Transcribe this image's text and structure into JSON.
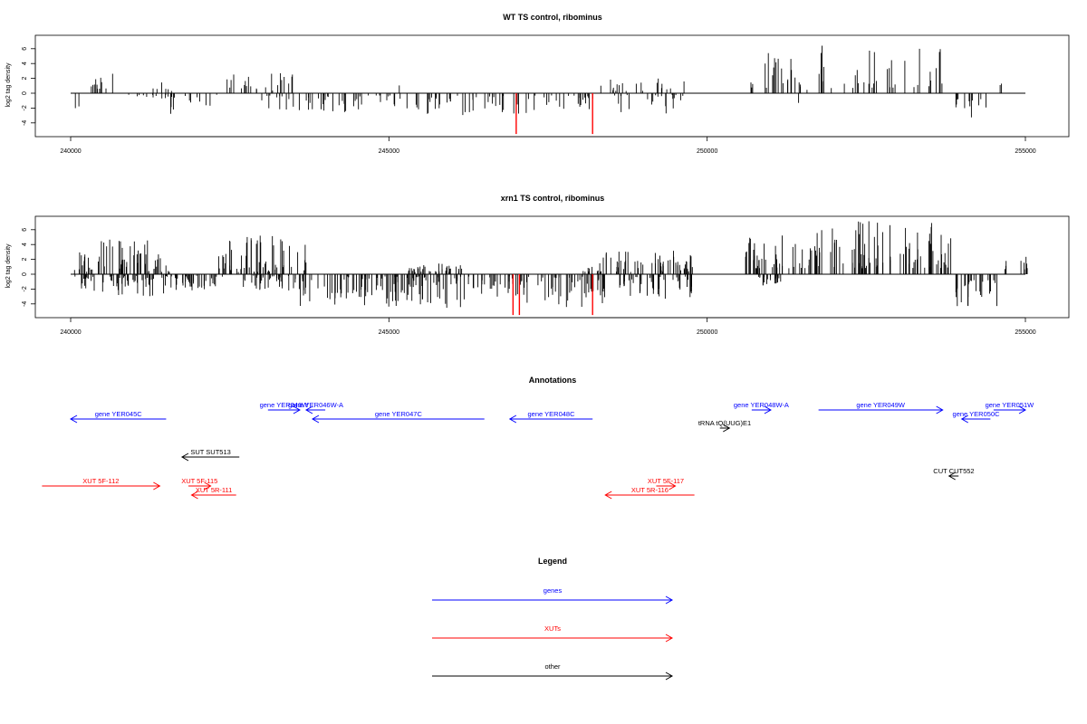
{
  "colors": {
    "genes": "#0000ff",
    "xuts": "#ff0000",
    "other": "#000000",
    "highlight": "#ff0000",
    "axis": "#000000"
  },
  "chart_data": [
    {
      "type": "bar",
      "title": "WT TS control, ribominus",
      "xlabel": "",
      "ylabel": "log2 tag density",
      "xlim": [
        240000,
        255000
      ],
      "ylim": [
        -6,
        8
      ],
      "xticks": [
        "240000",
        "245000",
        "250000",
        "255000"
      ],
      "yticks": [
        "-4",
        "-2",
        "0",
        "2",
        "4",
        "6"
      ],
      "highlight_positions": [
        247000,
        248200
      ],
      "highlight_values": [
        -5.5,
        -5.5
      ],
      "regions": [
        {
          "start": 240050,
          "end": 240150,
          "sign": -1,
          "min": 0.8,
          "max": 2.4
        },
        {
          "start": 240250,
          "end": 240700,
          "sign": 1,
          "min": 0.3,
          "max": 2.8
        },
        {
          "start": 240900,
          "end": 241800,
          "sign": -1,
          "min": 0.2,
          "max": 2.8
        },
        {
          "start": 241250,
          "end": 241600,
          "sign": 1,
          "min": 0.3,
          "max": 1.6
        },
        {
          "start": 241800,
          "end": 242300,
          "sign": -1,
          "min": 0.2,
          "max": 1.8
        },
        {
          "start": 242400,
          "end": 243500,
          "sign": 1,
          "min": 0.3,
          "max": 2.7
        },
        {
          "start": 243000,
          "end": 243600,
          "sign": -1,
          "min": 0.2,
          "max": 2.3
        },
        {
          "start": 243700,
          "end": 245500,
          "sign": -1,
          "min": 0.3,
          "max": 2.6
        },
        {
          "start": 245100,
          "end": 245200,
          "sign": 1,
          "min": 1.0,
          "max": 2.0
        },
        {
          "start": 245600,
          "end": 247600,
          "sign": -1,
          "min": 0.3,
          "max": 3.0
        },
        {
          "start": 247600,
          "end": 248250,
          "sign": -1,
          "min": 0.3,
          "max": 2.4
        },
        {
          "start": 248300,
          "end": 249000,
          "sign": 1,
          "min": 0.3,
          "max": 2.0
        },
        {
          "start": 248500,
          "end": 249700,
          "sign": -1,
          "min": 0.2,
          "max": 2.8
        },
        {
          "start": 249200,
          "end": 249650,
          "sign": 1,
          "min": 0.3,
          "max": 2.0
        },
        {
          "start": 250650,
          "end": 251400,
          "sign": 1,
          "min": 0.6,
          "max": 5.5
        },
        {
          "start": 251400,
          "end": 251600,
          "sign": 1,
          "min": 0.3,
          "max": 1.5
        },
        {
          "start": 251400,
          "end": 251500,
          "sign": -1,
          "min": 0.5,
          "max": 1.5
        },
        {
          "start": 251750,
          "end": 253700,
          "sign": 1,
          "min": 0.6,
          "max": 6.5
        },
        {
          "start": 253850,
          "end": 254450,
          "sign": -1,
          "min": 0.8,
          "max": 3.5
        },
        {
          "start": 254600,
          "end": 254650,
          "sign": 1,
          "min": 1.0,
          "max": 1.6
        }
      ],
      "density": 3
    },
    {
      "type": "bar",
      "title": "xrn1 TS control, ribominus",
      "xlabel": "",
      "ylabel": "log2 tag density",
      "xlim": [
        240000,
        255000
      ],
      "ylim": [
        -6,
        8
      ],
      "xticks": [
        "240000",
        "245000",
        "250000",
        "255000"
      ],
      "yticks": [
        "-4",
        "-2",
        "0",
        "2",
        "4",
        "6"
      ],
      "highlight_positions": [
        246950,
        247050,
        248200
      ],
      "highlight_values": [
        -5.5,
        -5.5,
        -5.5
      ],
      "regions": [
        {
          "start": 240050,
          "end": 240350,
          "sign": 1,
          "min": 0.3,
          "max": 3.0
        },
        {
          "start": 240050,
          "end": 240400,
          "sign": -1,
          "min": 0.3,
          "max": 2.3
        },
        {
          "start": 240400,
          "end": 241600,
          "sign": 1,
          "min": 0.3,
          "max": 5.0
        },
        {
          "start": 240500,
          "end": 241600,
          "sign": -1,
          "min": 0.2,
          "max": 3.0
        },
        {
          "start": 241600,
          "end": 242400,
          "sign": -1,
          "min": 0.2,
          "max": 2.2
        },
        {
          "start": 242300,
          "end": 243700,
          "sign": 1,
          "min": 0.3,
          "max": 5.2
        },
        {
          "start": 242700,
          "end": 243600,
          "sign": -1,
          "min": 0.2,
          "max": 2.2
        },
        {
          "start": 243600,
          "end": 248400,
          "sign": -1,
          "min": 0.3,
          "max": 4.6
        },
        {
          "start": 245300,
          "end": 246200,
          "sign": 1,
          "min": 0.3,
          "max": 1.5
        },
        {
          "start": 248000,
          "end": 248300,
          "sign": 1,
          "min": 0.3,
          "max": 1.2
        },
        {
          "start": 248300,
          "end": 249800,
          "sign": 1,
          "min": 0.3,
          "max": 3.3
        },
        {
          "start": 248600,
          "end": 249800,
          "sign": -1,
          "min": 0.3,
          "max": 3.6
        },
        {
          "start": 250600,
          "end": 251800,
          "sign": 1,
          "min": 0.8,
          "max": 5.3
        },
        {
          "start": 250800,
          "end": 251200,
          "sign": -1,
          "min": 0.3,
          "max": 1.5
        },
        {
          "start": 251700,
          "end": 253900,
          "sign": 1,
          "min": 0.8,
          "max": 7.3
        },
        {
          "start": 253900,
          "end": 254600,
          "sign": -1,
          "min": 0.8,
          "max": 4.6
        },
        {
          "start": 254650,
          "end": 254700,
          "sign": 1,
          "min": 0.5,
          "max": 2.0
        },
        {
          "start": 254900,
          "end": 255050,
          "sign": 1,
          "min": 0.5,
          "max": 3.0
        }
      ],
      "density": 6
    }
  ],
  "annotations": {
    "title": "Annotations",
    "items": [
      {
        "label": "gene YER045C",
        "kind": "genes",
        "start": 240000,
        "end": 241500,
        "dir": "left",
        "row": 0
      },
      {
        "label": "gene YER046W",
        "kind": "genes",
        "start": 243100,
        "end": 243600,
        "dir": "right",
        "row": -1
      },
      {
        "label": "gene YER046W-A",
        "kind": "genes",
        "start": 243700,
        "end": 244000,
        "dir": "left",
        "row": -1
      },
      {
        "label": "gene YER047C",
        "kind": "genes",
        "start": 243800,
        "end": 246500,
        "dir": "left",
        "row": 0
      },
      {
        "label": "gene YER048C",
        "kind": "genes",
        "start": 246900,
        "end": 248200,
        "dir": "left",
        "row": 0
      },
      {
        "label": "gene YER048W-A",
        "kind": "genes",
        "start": 250700,
        "end": 251000,
        "dir": "right",
        "row": -1
      },
      {
        "label": "gene YER049W",
        "kind": "genes",
        "start": 251750,
        "end": 253700,
        "dir": "right",
        "row": -1
      },
      {
        "label": "gene YER050C",
        "kind": "genes",
        "start": 254000,
        "end": 254450,
        "dir": "left",
        "row": 0
      },
      {
        "label": "gene YER051W",
        "kind": "genes",
        "start": 254500,
        "end": 255000,
        "dir": "right",
        "row": -1
      },
      {
        "label": "tRNA tQ(UUG)E1",
        "kind": "other",
        "start": 250200,
        "end": 250350,
        "dir": "right",
        "row": 1
      },
      {
        "label": "SUT SUT513",
        "kind": "other",
        "start": 241750,
        "end": 242650,
        "dir": "left",
        "row": 2
      },
      {
        "label": "CUT CUT552",
        "kind": "other",
        "start": 253800,
        "end": 253950,
        "dir": "left",
        "row": 4
      },
      {
        "label": "XUT 5F-112",
        "kind": "xuts",
        "start": 239550,
        "end": 241400,
        "dir": "right",
        "row": 5
      },
      {
        "label": "XUT 5F-115",
        "kind": "xuts",
        "start": 241850,
        "end": 242200,
        "dir": "right",
        "row": 5
      },
      {
        "label": "XUT 5R-111",
        "kind": "xuts",
        "start": 241900,
        "end": 242600,
        "dir": "left",
        "row": 6
      },
      {
        "label": "XUT 5F-117",
        "kind": "xuts",
        "start": 249200,
        "end": 249500,
        "dir": "right",
        "row": 5
      },
      {
        "label": "XUT 5R-116",
        "kind": "xuts",
        "start": 248400,
        "end": 249800,
        "dir": "left",
        "row": 6
      }
    ]
  },
  "legend": {
    "title": "Legend",
    "entries": [
      {
        "label": "genes",
        "kind": "genes"
      },
      {
        "label": "XUTs",
        "kind": "xuts"
      },
      {
        "label": "other",
        "kind": "other"
      }
    ]
  }
}
